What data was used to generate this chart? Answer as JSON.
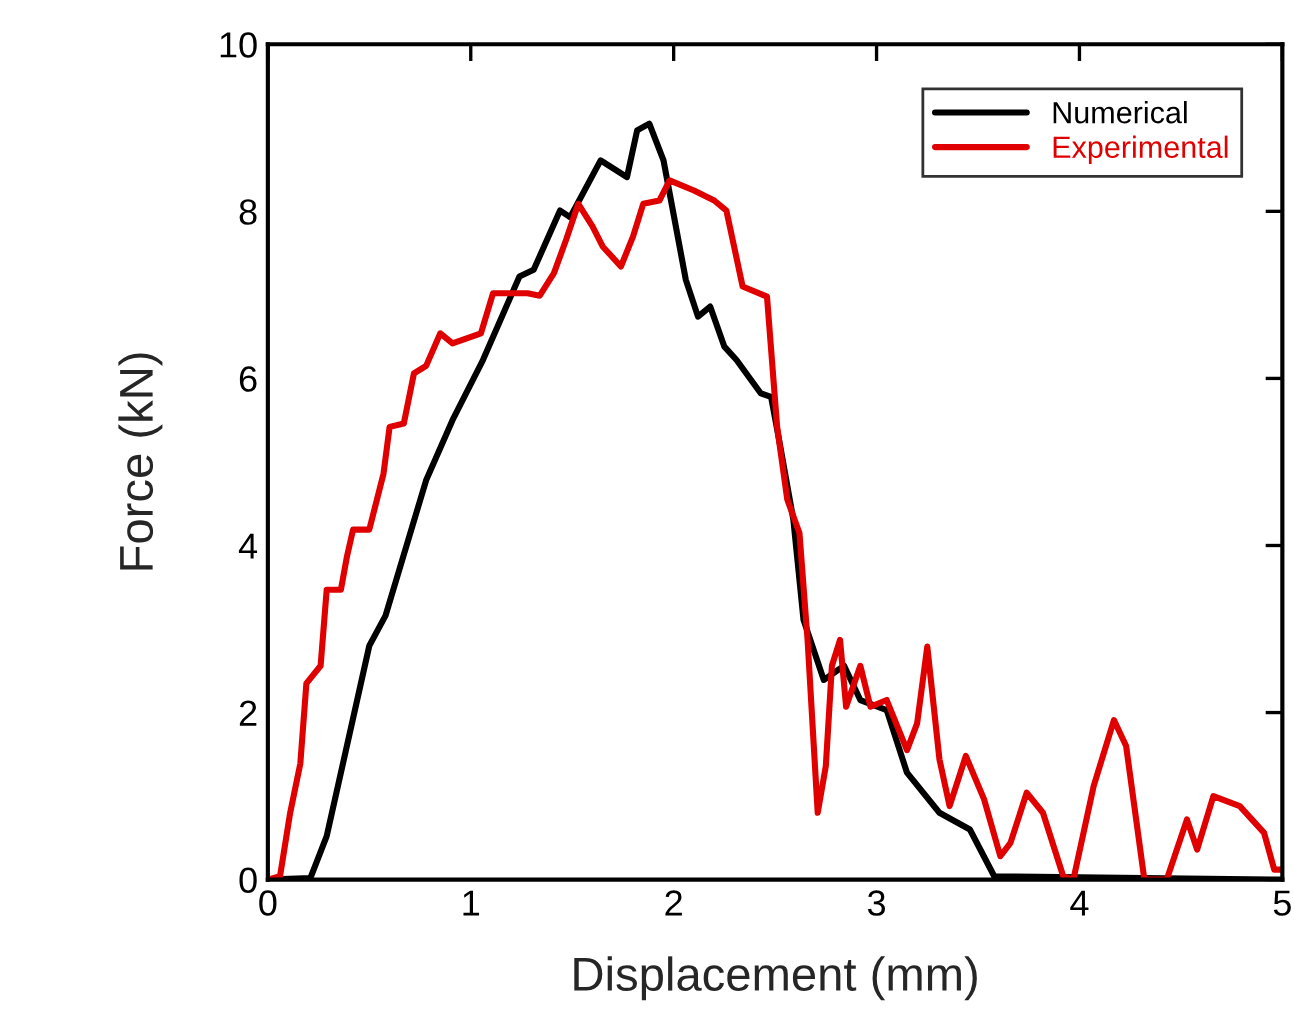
{
  "chart_data": {
    "type": "line",
    "xlabel": "Displacement (mm)",
    "ylabel": "Force (kN)",
    "xlim": [
      0,
      5
    ],
    "ylim": [
      0,
      10
    ],
    "xticks": [
      0,
      1,
      2,
      3,
      4,
      5
    ],
    "yticks": [
      0,
      2,
      4,
      6,
      8,
      10
    ],
    "grid": false,
    "legend": "top right",
    "line_style": "solid",
    "marker": "none",
    "series": [
      {
        "name": "Numerical",
        "color": "#000000",
        "x": [
          0,
          0.21,
          0.29,
          0.5,
          0.58,
          0.78,
          0.91,
          1.06,
          1.24,
          1.31,
          1.44,
          1.49,
          1.64,
          1.77,
          1.82,
          1.88,
          1.95,
          2.06,
          2.12,
          2.18,
          2.25,
          2.31,
          2.43,
          2.48,
          2.52,
          2.59,
          2.64,
          2.74,
          2.84,
          2.92,
          3.05,
          3.15,
          3.31,
          3.46,
          3.58,
          5
        ],
        "values": [
          0,
          0.02,
          0.52,
          2.8,
          3.16,
          4.78,
          5.5,
          6.22,
          7.22,
          7.3,
          8.01,
          7.93,
          8.61,
          8.41,
          8.97,
          9.05,
          8.61,
          7.18,
          6.74,
          6.86,
          6.38,
          6.22,
          5.82,
          5.78,
          5.26,
          4.31,
          3.11,
          2.39,
          2.56,
          2.15,
          2.03,
          1.28,
          0.8,
          0.6,
          0.04,
          0
        ]
      },
      {
        "name": "Experimental",
        "color": "#e00000",
        "x": [
          0,
          0.06,
          0.11,
          0.16,
          0.19,
          0.26,
          0.29,
          0.36,
          0.39,
          0.42,
          0.5,
          0.57,
          0.6,
          0.67,
          0.72,
          0.78,
          0.85,
          0.91,
          1.05,
          1.11,
          1.28,
          1.34,
          1.41,
          1.47,
          1.53,
          1.6,
          1.65,
          1.74,
          1.8,
          1.85,
          1.93,
          1.98,
          2.1,
          2.2,
          2.26,
          2.34,
          2.46,
          2.51,
          2.56,
          2.62,
          2.66,
          2.71,
          2.75,
          2.78,
          2.82,
          2.85,
          2.92,
          2.97,
          3.05,
          3.15,
          3.2,
          3.25,
          3.31,
          3.36,
          3.44,
          3.53,
          3.61,
          3.66,
          3.74,
          3.82,
          3.92,
          3.97,
          4.07,
          4.17,
          4.23,
          4.32,
          4.43,
          4.53,
          4.58,
          4.66,
          4.79,
          4.91,
          4.96,
          5
        ],
        "values": [
          0,
          0.04,
          0.8,
          1.39,
          2.35,
          2.56,
          3.47,
          3.47,
          3.87,
          4.19,
          4.19,
          4.86,
          5.42,
          5.46,
          6.06,
          6.15,
          6.54,
          6.42,
          6.54,
          7.02,
          7.02,
          6.99,
          7.26,
          7.66,
          8.09,
          7.82,
          7.58,
          7.34,
          7.7,
          8.09,
          8.13,
          8.37,
          8.25,
          8.13,
          8.01,
          7.1,
          6.98,
          5.42,
          4.55,
          4.15,
          2.87,
          0.8,
          1.36,
          2.56,
          2.87,
          2.07,
          2.56,
          2.07,
          2.15,
          1.55,
          1.87,
          2.79,
          1.44,
          0.88,
          1.48,
          0.96,
          0.28,
          0.44,
          1.04,
          0.8,
          0.04,
          0,
          1.12,
          1.91,
          1.6,
          0,
          0,
          0.72,
          0.36,
          1.0,
          0.88,
          0.56,
          0.12,
          0.12
        ]
      }
    ]
  }
}
